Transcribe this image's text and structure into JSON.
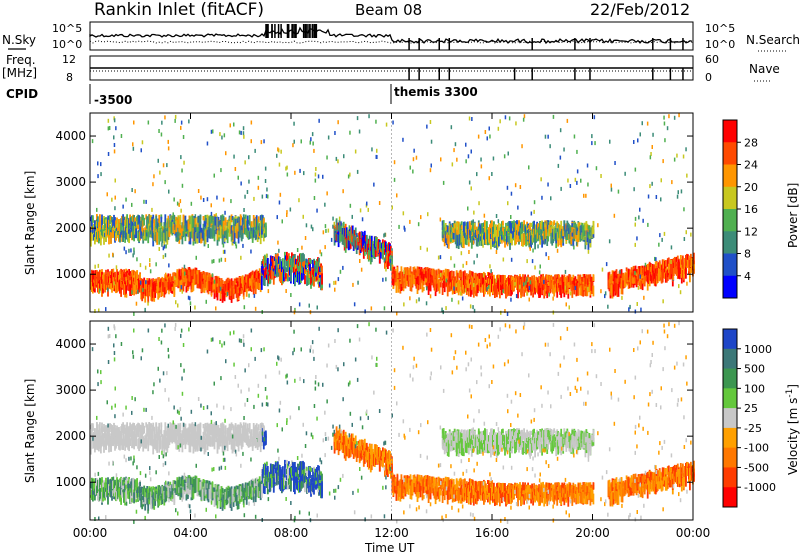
{
  "header": {
    "title": "Rankin Inlet (fitACF)",
    "beam": "Beam 08",
    "date": "22/Feb/2012"
  },
  "left_labels": {
    "nsky": "N.Sky",
    "freq": "Freq.",
    "freq_unit": "[MHz]",
    "cpid": "CPID"
  },
  "right_labels": {
    "nsearch": "N.Search",
    "nave": "Nave"
  },
  "nsky_ticks": [
    "10^5",
    "10^0"
  ],
  "nsearch_ticks": [
    "10^5",
    "10^0"
  ],
  "freq_ticks": [
    "12",
    "8"
  ],
  "nave_ticks": [
    "60",
    "0"
  ],
  "cpid_labels": [
    "-3500",
    "themis 3300"
  ],
  "chart_data": [
    {
      "type": "heatmap",
      "name": "power",
      "ylabel": "Slant Range [km]",
      "xlabel": "",
      "x_range": [
        "00:00",
        "24:00"
      ],
      "ylim": [
        180,
        4500
      ],
      "yticks": [
        "1000",
        "2000",
        "3000",
        "4000"
      ],
      "colorbar_label": "Power [dB]",
      "colorbar_ticks": [
        "4",
        "8",
        "12",
        "16",
        "20",
        "24",
        "28"
      ],
      "colorbar_colors": [
        "#0000ff",
        "#2050c8",
        "#3c8c78",
        "#50b050",
        "#c8c820",
        "#ff9600",
        "#ff4a00",
        "#ff0000"
      ]
    },
    {
      "type": "heatmap",
      "name": "velocity",
      "ylabel": "Slant Range [km]",
      "xlabel": "Time UT",
      "x_range": [
        "00:00",
        "24:00"
      ],
      "ylim": [
        180,
        4500
      ],
      "yticks": [
        "1000",
        "2000",
        "3000",
        "4000"
      ],
      "colorbar_label": "Velocity [m s",
      "colorbar_label_sup": "-1",
      "colorbar_label_end": "]",
      "colorbar_ticks": [
        "1000",
        "500",
        "100",
        "25",
        "-25",
        "-100",
        "-500",
        "-1000"
      ],
      "colorbar_colors": [
        "#1e46c8",
        "#3c7878",
        "#3c9650",
        "#64c83c",
        "#c8c8c8",
        "#ffa000",
        "#ff7800",
        "#ff3c00",
        "#ff0000"
      ]
    }
  ],
  "x_ticks": [
    "00:00",
    "04:00",
    "08:00",
    "12:00",
    "16:00",
    "20:00",
    "00:00"
  ]
}
